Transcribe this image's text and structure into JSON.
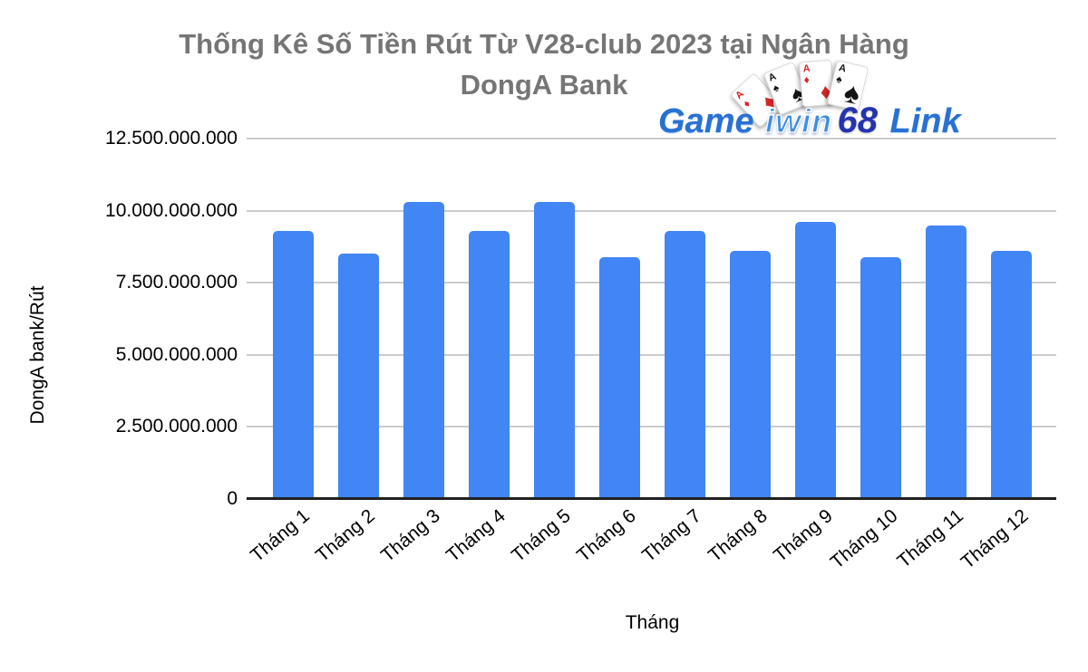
{
  "page": {
    "background": "#ffffff"
  },
  "header": {
    "title_line1": "Thống Kê Số Tiền Rút Từ V28-club 2023 tại Ngân Hàng",
    "title_line2": "DongA Bank",
    "title_color": "#757575"
  },
  "logo": {
    "game": "Game",
    "iwin": "iwin",
    "num68": "68",
    "link": "Link",
    "cards": [
      {
        "rank": "A",
        "suit": "♦",
        "color": "#d62828"
      },
      {
        "rank": "A",
        "suit": "♠",
        "color": "#141414"
      },
      {
        "rank": "A",
        "suit": "♦",
        "color": "#d62828"
      },
      {
        "rank": "A",
        "suit": "♠",
        "color": "#141414"
      }
    ]
  },
  "chart_data": {
    "type": "bar",
    "title": "Thống Kê Số Tiền Rút Từ V28-club 2023 tại Ngân Hàng DongA Bank",
    "xlabel": "Tháng",
    "ylabel": "DongA bank/Rút",
    "categories": [
      "Tháng 1",
      "Tháng 2",
      "Tháng 3",
      "Tháng 4",
      "Tháng 5",
      "Tháng 6",
      "Tháng 7",
      "Tháng 8",
      "Tháng 9",
      "Tháng 10",
      "Tháng 11",
      "Tháng 12"
    ],
    "values": [
      9300000000,
      8500000000,
      10300000000,
      9300000000,
      10300000000,
      8400000000,
      9300000000,
      8600000000,
      9600000000,
      8400000000,
      9500000000,
      8600000000
    ],
    "ylim": [
      0,
      12500000000
    ],
    "ytick_labels": [
      "0",
      "2.500.000.000",
      "5.000.000.000",
      "7.500.000.000",
      "10.000.000.000",
      "12.500.000.000"
    ],
    "bar_color": "#4285f4",
    "gridline_color": "#cccccc",
    "baseline_color": "#212121",
    "grid": true,
    "legend_position": "none"
  }
}
